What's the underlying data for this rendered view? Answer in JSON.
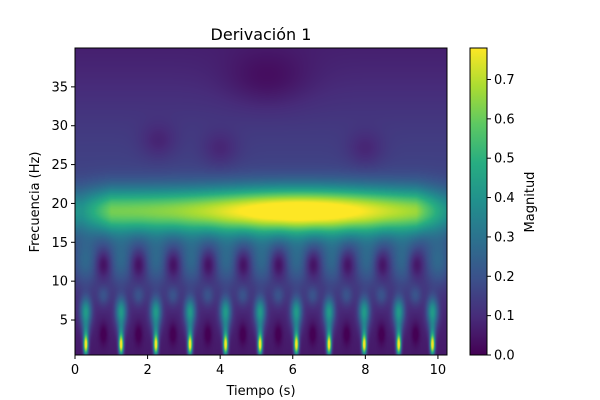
{
  "chart_data": {
    "type": "heatmap",
    "title": "Derivación 1",
    "xlabel": "Tiempo (s)",
    "ylabel": "Frecuencia (Hz)",
    "xlim": [
      0,
      10.25
    ],
    "ylim": [
      0.5,
      40
    ],
    "x_ticks": [
      0,
      2,
      4,
      6,
      8,
      10
    ],
    "y_ticks": [
      5,
      10,
      15,
      20,
      25,
      30,
      35
    ],
    "colorbar": {
      "label": "Magnitud",
      "range": [
        0,
        0.78
      ],
      "ticks": [
        "0.0",
        "0.1",
        "0.2",
        "0.3",
        "0.4",
        "0.5",
        "0.6",
        "0.7"
      ],
      "colormap": "viridis"
    },
    "band_center_hz": 19,
    "band_peak_time_s": 6.2,
    "band_peak_value": 0.72,
    "beat_times_s": [
      0.3,
      1.27,
      2.23,
      3.17,
      4.15,
      5.1,
      6.1,
      7.0,
      7.97,
      8.92,
      9.85
    ]
  }
}
